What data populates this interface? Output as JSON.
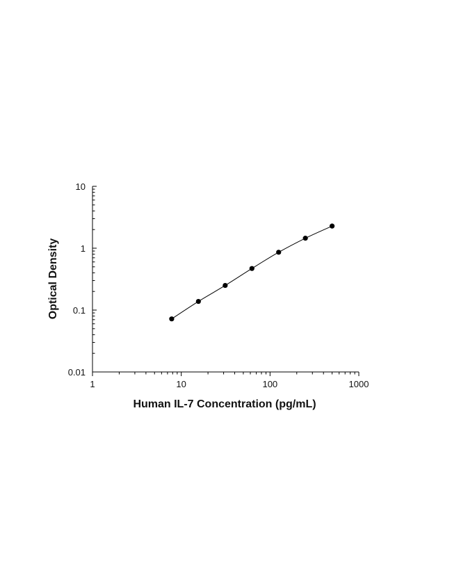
{
  "chart_data": {
    "type": "scatter",
    "title": "",
    "xlabel": "Human IL-7 Concentration (pg/mL)",
    "ylabel": "Optical Density",
    "x_scale": "log",
    "y_scale": "log",
    "xlim": [
      1,
      1000
    ],
    "ylim": [
      0.01,
      10
    ],
    "x_ticks": [
      1,
      10,
      100,
      1000
    ],
    "x_tick_labels": [
      "1",
      "10",
      "100",
      "1000"
    ],
    "y_ticks": [
      0.01,
      0.1,
      1,
      10
    ],
    "y_tick_labels": [
      "0.01",
      "0.1",
      "1",
      "10"
    ],
    "grid": false,
    "legend": "none",
    "series": [
      {
        "x": [
          7.8,
          15.6,
          31.25,
          62.5,
          125,
          250,
          500
        ],
        "y": [
          0.072,
          0.138,
          0.25,
          0.47,
          0.86,
          1.45,
          2.28
        ],
        "marker_color": "#000000",
        "line_color": "#000000",
        "fitted_curve": true
      }
    ]
  }
}
